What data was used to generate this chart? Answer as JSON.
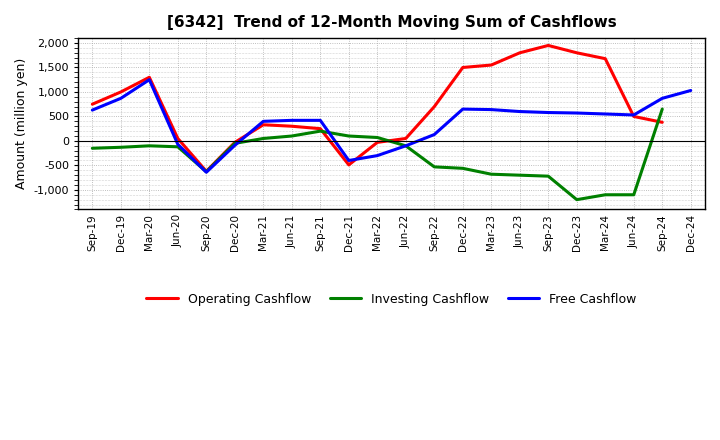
{
  "title": "[6342]  Trend of 12-Month Moving Sum of Cashflows",
  "ylabel": "Amount (million yen)",
  "x_labels": [
    "Sep-19",
    "Dec-19",
    "Mar-20",
    "Jun-20",
    "Sep-20",
    "Dec-20",
    "Mar-21",
    "Jun-21",
    "Sep-21",
    "Dec-21",
    "Mar-22",
    "Jun-22",
    "Sep-22",
    "Dec-22",
    "Mar-23",
    "Jun-23",
    "Sep-23",
    "Dec-23",
    "Mar-24",
    "Jun-24",
    "Sep-24",
    "Dec-24"
  ],
  "operating": [
    750,
    1000,
    1300,
    50,
    -620,
    -30,
    330,
    300,
    250,
    -490,
    -30,
    50,
    700,
    1500,
    1550,
    1800,
    1950,
    1800,
    1680,
    500,
    380,
    null
  ],
  "investing": [
    -150,
    -130,
    -100,
    -120,
    -630,
    -50,
    50,
    100,
    200,
    100,
    70,
    -100,
    -530,
    -560,
    -680,
    -700,
    -720,
    -1200,
    -1100,
    -1100,
    650,
    null
  ],
  "free": [
    630,
    870,
    1250,
    -70,
    -640,
    -90,
    400,
    420,
    420,
    -400,
    -300,
    -100,
    130,
    650,
    640,
    600,
    580,
    570,
    550,
    530,
    870,
    1030
  ],
  "ylim": [
    -1400,
    2100
  ],
  "yticks": [
    -1000,
    -500,
    0,
    500,
    1000,
    1500,
    2000
  ],
  "operating_color": "#ff0000",
  "investing_color": "#008000",
  "free_color": "#0000ff",
  "line_width": 2.2,
  "bg_color": "#ffffff",
  "plot_bg_color": "#ffffff",
  "grid_color": "#aaaaaa",
  "legend_labels": [
    "Operating Cashflow",
    "Investing Cashflow",
    "Free Cashflow"
  ]
}
